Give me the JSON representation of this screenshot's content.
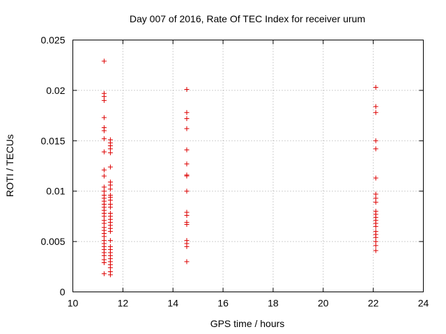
{
  "chart_data": {
    "type": "scatter",
    "title": "Day 007 of 2016, Rate Of TEC Index for receiver urum",
    "xlabel": "GPS time / hours",
    "ylabel": "ROTI / TECUs",
    "xlim": [
      10,
      24
    ],
    "ylim": [
      0,
      0.025
    ],
    "x_ticks": [
      10,
      12,
      14,
      16,
      18,
      20,
      22,
      24
    ],
    "x_tick_labels": [
      "10",
      "12",
      "14",
      "16",
      "18",
      "20",
      "22",
      "24"
    ],
    "y_ticks": [
      0,
      0.005,
      0.01,
      0.015,
      0.02,
      0.025
    ],
    "y_tick_labels": [
      "0",
      "0.005",
      "0.01",
      "0.015",
      "0.02",
      "0.025"
    ],
    "grid": true,
    "marker": "+",
    "color": "#dd0000",
    "series": [
      {
        "name": "ROTI",
        "points": [
          [
            11.25,
            0.0229
          ],
          [
            11.25,
            0.0197
          ],
          [
            11.25,
            0.0194
          ],
          [
            11.25,
            0.019
          ],
          [
            11.25,
            0.0173
          ],
          [
            11.25,
            0.0163
          ],
          [
            11.25,
            0.016
          ],
          [
            11.25,
            0.0152
          ],
          [
            11.25,
            0.0139
          ],
          [
            11.25,
            0.0121
          ],
          [
            11.25,
            0.0115
          ],
          [
            11.25,
            0.0104
          ],
          [
            11.25,
            0.01
          ],
          [
            11.25,
            0.0096
          ],
          [
            11.25,
            0.0093
          ],
          [
            11.25,
            0.009
          ],
          [
            11.25,
            0.0087
          ],
          [
            11.25,
            0.0084
          ],
          [
            11.25,
            0.0081
          ],
          [
            11.25,
            0.0078
          ],
          [
            11.25,
            0.0075
          ],
          [
            11.25,
            0.0071
          ],
          [
            11.25,
            0.0068
          ],
          [
            11.25,
            0.0064
          ],
          [
            11.25,
            0.0061
          ],
          [
            11.25,
            0.0058
          ],
          [
            11.25,
            0.0055
          ],
          [
            11.25,
            0.0051
          ],
          [
            11.25,
            0.0048
          ],
          [
            11.25,
            0.0045
          ],
          [
            11.25,
            0.0042
          ],
          [
            11.25,
            0.0039
          ],
          [
            11.25,
            0.0036
          ],
          [
            11.25,
            0.0032
          ],
          [
            11.25,
            0.0029
          ],
          [
            11.25,
            0.0018
          ],
          [
            11.5,
            0.0151
          ],
          [
            11.5,
            0.0148
          ],
          [
            11.5,
            0.0145
          ],
          [
            11.5,
            0.0142
          ],
          [
            11.5,
            0.0138
          ],
          [
            11.5,
            0.0124
          ],
          [
            11.5,
            0.0109
          ],
          [
            11.5,
            0.0106
          ],
          [
            11.5,
            0.0102
          ],
          [
            11.5,
            0.0096
          ],
          [
            11.5,
            0.0094
          ],
          [
            11.5,
            0.0091
          ],
          [
            11.5,
            0.0087
          ],
          [
            11.5,
            0.0084
          ],
          [
            11.5,
            0.0078
          ],
          [
            11.5,
            0.0075
          ],
          [
            11.5,
            0.0072
          ],
          [
            11.5,
            0.0069
          ],
          [
            11.5,
            0.0066
          ],
          [
            11.5,
            0.0063
          ],
          [
            11.5,
            0.006
          ],
          [
            11.5,
            0.0051
          ],
          [
            11.5,
            0.0045
          ],
          [
            11.5,
            0.0042
          ],
          [
            11.5,
            0.0039
          ],
          [
            11.5,
            0.0036
          ],
          [
            11.5,
            0.0033
          ],
          [
            11.5,
            0.003
          ],
          [
            11.5,
            0.0027
          ],
          [
            11.5,
            0.0024
          ],
          [
            11.5,
            0.002
          ],
          [
            11.5,
            0.0017
          ],
          [
            14.55,
            0.0201
          ],
          [
            14.55,
            0.0178
          ],
          [
            14.55,
            0.0172
          ],
          [
            14.55,
            0.0162
          ],
          [
            14.55,
            0.0141
          ],
          [
            14.55,
            0.0127
          ],
          [
            14.55,
            0.0116
          ],
          [
            14.55,
            0.0115
          ],
          [
            14.55,
            0.01
          ],
          [
            14.55,
            0.0079
          ],
          [
            14.55,
            0.0076
          ],
          [
            14.55,
            0.0069
          ],
          [
            14.55,
            0.0067
          ],
          [
            14.55,
            0.0051
          ],
          [
            14.55,
            0.0048
          ],
          [
            14.55,
            0.0045
          ],
          [
            14.55,
            0.003
          ],
          [
            22.1,
            0.0203
          ],
          [
            22.1,
            0.0184
          ],
          [
            22.1,
            0.0178
          ],
          [
            22.1,
            0.015
          ],
          [
            22.1,
            0.0142
          ],
          [
            22.1,
            0.0113
          ],
          [
            22.1,
            0.0097
          ],
          [
            22.1,
            0.0093
          ],
          [
            22.1,
            0.0089
          ],
          [
            22.1,
            0.008
          ],
          [
            22.1,
            0.0077
          ],
          [
            22.1,
            0.0074
          ],
          [
            22.1,
            0.0071
          ],
          [
            22.1,
            0.0068
          ],
          [
            22.1,
            0.0065
          ],
          [
            22.1,
            0.006
          ],
          [
            22.1,
            0.0057
          ],
          [
            22.1,
            0.0054
          ],
          [
            22.1,
            0.005
          ],
          [
            22.1,
            0.0046
          ],
          [
            22.1,
            0.0041
          ]
        ]
      }
    ]
  }
}
